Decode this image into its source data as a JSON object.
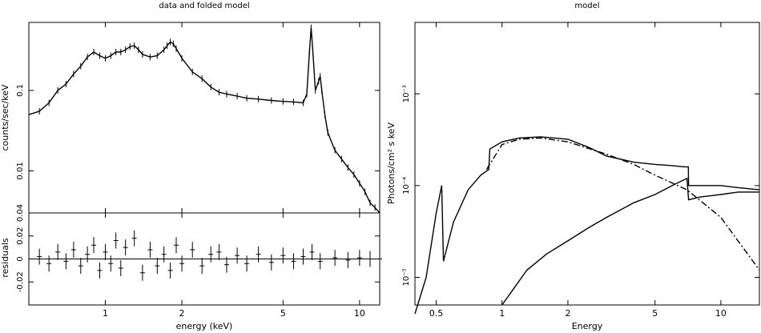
{
  "chart_data": [
    {
      "type": "line",
      "title": "data and folded model",
      "xlabel": "energy (keV)",
      "ylabel": "counts/sec/keV",
      "xscale": "log",
      "yscale": "log",
      "xlim": [
        0.5,
        12
      ],
      "ylim": [
        0.003,
        0.7
      ],
      "x_ticks": [
        1,
        2,
        5,
        10
      ],
      "x_tick_labels": [
        "1",
        "2",
        "5",
        "10"
      ],
      "y_ticks": [
        0.01,
        0.1
      ],
      "y_tick_labels": [
        "0.01",
        "0.1"
      ],
      "series": [
        {
          "x": [
            0.5,
            0.55,
            0.6,
            0.65,
            0.7,
            0.75,
            0.8,
            0.85,
            0.9,
            0.95,
            1.0,
            1.05,
            1.1,
            1.15,
            1.2,
            1.25,
            1.3,
            1.35,
            1.4,
            1.5,
            1.6,
            1.7,
            1.75,
            1.8,
            1.85,
            1.9,
            2.0,
            2.2,
            2.4,
            2.6,
            2.8,
            3.0,
            3.3,
            3.6,
            4.0,
            4.5,
            5.0,
            5.5,
            6.0,
            6.2,
            6.35,
            6.45,
            6.55,
            6.7,
            6.9,
            7.0,
            7.1,
            7.3,
            7.5,
            8.0,
            8.5,
            9.0,
            9.5,
            10.0,
            10.5,
            11.0,
            11.5,
            12.0
          ],
          "y": [
            0.05,
            0.055,
            0.07,
            0.1,
            0.12,
            0.16,
            0.2,
            0.26,
            0.3,
            0.27,
            0.25,
            0.27,
            0.3,
            0.3,
            0.32,
            0.35,
            0.36,
            0.32,
            0.28,
            0.26,
            0.27,
            0.32,
            0.36,
            0.4,
            0.38,
            0.33,
            0.25,
            0.17,
            0.14,
            0.11,
            0.095,
            0.09,
            0.085,
            0.08,
            0.078,
            0.075,
            0.073,
            0.072,
            0.07,
            0.09,
            0.3,
            0.6,
            0.3,
            0.1,
            0.13,
            0.15,
            0.1,
            0.05,
            0.03,
            0.018,
            0.014,
            0.011,
            0.009,
            0.007,
            0.0055,
            0.004,
            0.0035,
            0.003
          ]
        }
      ]
    },
    {
      "type": "line",
      "ylabel": "residuals",
      "xscale": "log",
      "xlim": [
        0.5,
        12
      ],
      "ylim": [
        -0.04,
        0.04
      ],
      "y_ticks": [
        -0.02,
        0,
        0.02,
        0.04
      ],
      "y_tick_labels": [
        "-0.02",
        "0",
        "0.02",
        "0.04"
      ],
      "series": [
        {
          "x": [
            0.55,
            0.6,
            0.65,
            0.7,
            0.75,
            0.8,
            0.85,
            0.9,
            0.95,
            1.0,
            1.05,
            1.1,
            1.15,
            1.2,
            1.3,
            1.4,
            1.5,
            1.6,
            1.7,
            1.8,
            1.9,
            2.0,
            2.2,
            2.4,
            2.6,
            2.8,
            3.0,
            3.3,
            3.6,
            4.0,
            4.5,
            5.0,
            5.5,
            6.0,
            6.5,
            7.0,
            8.0,
            9.0,
            10.0,
            11.0,
            12.0
          ],
          "y": [
            0.002,
            -0.004,
            0.006,
            -0.002,
            0.008,
            -0.006,
            0.004,
            0.012,
            -0.01,
            0.006,
            -0.004,
            0.016,
            -0.008,
            0.01,
            0.018,
            -0.012,
            0.008,
            -0.006,
            0.004,
            -0.01,
            0.012,
            -0.004,
            0.008,
            -0.006,
            0.004,
            0.006,
            -0.005,
            0.003,
            -0.004,
            0.004,
            -0.003,
            0.003,
            -0.002,
            0.002,
            0.006,
            -0.002,
            0.001,
            -0.001,
            0.001,
            0.0,
            0.0
          ]
        }
      ]
    },
    {
      "type": "line",
      "title": "model",
      "xlabel": "Energy",
      "ylabel": "Photons/cm² s keV",
      "xscale": "log",
      "yscale": "log",
      "xlim": [
        0.4,
        15
      ],
      "ylim": [
        5e-06,
        0.006
      ],
      "x_ticks": [
        0.5,
        1,
        2,
        5,
        10
      ],
      "x_tick_labels": [
        "0.5",
        "1",
        "2",
        "5",
        "10"
      ],
      "y_ticks": [
        1e-05,
        0.0001,
        0.001
      ],
      "y_tick_labels": [
        "10⁻⁵",
        "10⁻⁴",
        "10⁻³"
      ],
      "series": [
        {
          "x": [
            0.4,
            0.45,
            0.5,
            0.53,
            0.54,
            0.6,
            0.7,
            0.8,
            0.87,
            0.88,
            1.0,
            1.2,
            1.5,
            2.0,
            2.5,
            3.0,
            4.0,
            5.0,
            6.0,
            6.8,
            7.1,
            7.12,
            8.0,
            10.0,
            12.0,
            15.0
          ],
          "y": [
            4e-06,
            1e-05,
            5e-05,
            0.0001,
            1.5e-05,
            4e-05,
            9e-05,
            0.00013,
            0.00015,
            0.00025,
            0.0003,
            0.00033,
            0.00034,
            0.00032,
            0.00026,
            0.00021,
            0.00018,
            0.00017,
            0.000165,
            0.00016,
            0.00016,
            0.0001,
            0.0001,
            0.0001,
            9.5e-05,
            9e-05
          ]
        },
        {
          "x": [
            0.85,
            1.0,
            1.2,
            1.5,
            2.0,
            3.0,
            4.0,
            5.0,
            7.0,
            10.0,
            15.0
          ],
          "y": [
            0.00015,
            0.00028,
            0.00032,
            0.00033,
            0.0003,
            0.00022,
            0.00017,
            0.00013,
            9e-05,
            4.5e-05,
            1.2e-05
          ]
        },
        {
          "x": [
            1.0,
            1.3,
            1.6,
            2.0,
            2.5,
            3.0,
            4.0,
            5.0,
            6.0,
            7.0,
            7.12,
            8.0,
            10.0,
            12.0,
            15.0
          ],
          "y": [
            5e-06,
            1.2e-05,
            1.8e-05,
            2.5e-05,
            3.5e-05,
            4.5e-05,
            6.5e-05,
            8e-05,
            0.0001,
            0.00012,
            7e-05,
            7.5e-05,
            8e-05,
            8.5e-05,
            8.5e-05
          ]
        }
      ]
    }
  ]
}
